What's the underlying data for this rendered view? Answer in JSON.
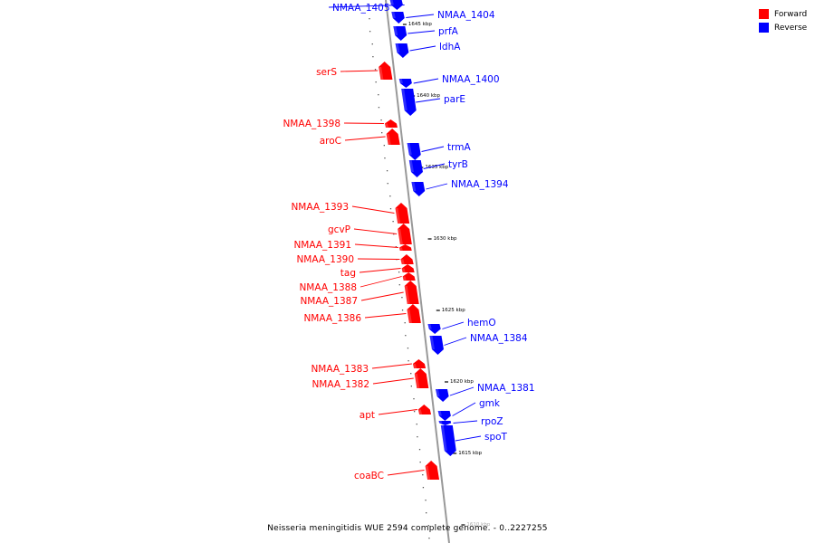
{
  "colors": {
    "forward": "#ff0000",
    "reverse": "#0000ff",
    "axis": "#999999"
  },
  "legend": [
    {
      "label": "Forward",
      "color": "#ff0000"
    },
    {
      "label": "Reverse",
      "color": "#0000ff"
    }
  ],
  "caption": "Neisseria meningitidis WUE 2594 complete genome. - 0..2227255",
  "scale_labels": [
    {
      "kbp": 1645,
      "text": "1645 kbp"
    },
    {
      "kbp": 1640,
      "text": "1640 kbp"
    },
    {
      "kbp": 1635,
      "text": "1635 kbp"
    },
    {
      "kbp": 1630,
      "text": "1630 kbp"
    },
    {
      "kbp": 1625,
      "text": "1625 kbp"
    },
    {
      "kbp": 1620,
      "text": "1620 kbp"
    },
    {
      "kbp": 1615,
      "text": "1615 kbp"
    },
    {
      "kbp": 1610,
      "text": "1610 kbp"
    }
  ],
  "genes": [
    {
      "name": "NMAA_1405",
      "strand": "reverse"
    },
    {
      "name": "NMAA_1404",
      "strand": "reverse"
    },
    {
      "name": "prfA",
      "strand": "reverse"
    },
    {
      "name": "ldhA",
      "strand": "reverse"
    },
    {
      "name": "serS",
      "strand": "forward"
    },
    {
      "name": "NMAA_1400",
      "strand": "reverse"
    },
    {
      "name": "parE",
      "strand": "reverse"
    },
    {
      "name": "NMAA_1398",
      "strand": "forward"
    },
    {
      "name": "aroC",
      "strand": "forward"
    },
    {
      "name": "trmA",
      "strand": "reverse"
    },
    {
      "name": "tyrB",
      "strand": "reverse"
    },
    {
      "name": "NMAA_1394",
      "strand": "reverse"
    },
    {
      "name": "NMAA_1393",
      "strand": "forward"
    },
    {
      "name": "gcvP",
      "strand": "forward"
    },
    {
      "name": "NMAA_1391",
      "strand": "forward"
    },
    {
      "name": "NMAA_1390",
      "strand": "forward"
    },
    {
      "name": "tag",
      "strand": "forward"
    },
    {
      "name": "NMAA_1388",
      "strand": "forward"
    },
    {
      "name": "NMAA_1387",
      "strand": "forward"
    },
    {
      "name": "NMAA_1386",
      "strand": "forward"
    },
    {
      "name": "hemO",
      "strand": "reverse"
    },
    {
      "name": "NMAA_1384",
      "strand": "reverse"
    },
    {
      "name": "NMAA_1383",
      "strand": "forward"
    },
    {
      "name": "NMAA_1382",
      "strand": "forward"
    },
    {
      "name": "NMAA_1381",
      "strand": "reverse"
    },
    {
      "name": "gmk",
      "strand": "reverse"
    },
    {
      "name": "apt",
      "strand": "forward"
    },
    {
      "name": "rpoZ",
      "strand": "reverse"
    },
    {
      "name": "spoT",
      "strand": "reverse"
    },
    {
      "name": "coaBC",
      "strand": "forward"
    }
  ]
}
